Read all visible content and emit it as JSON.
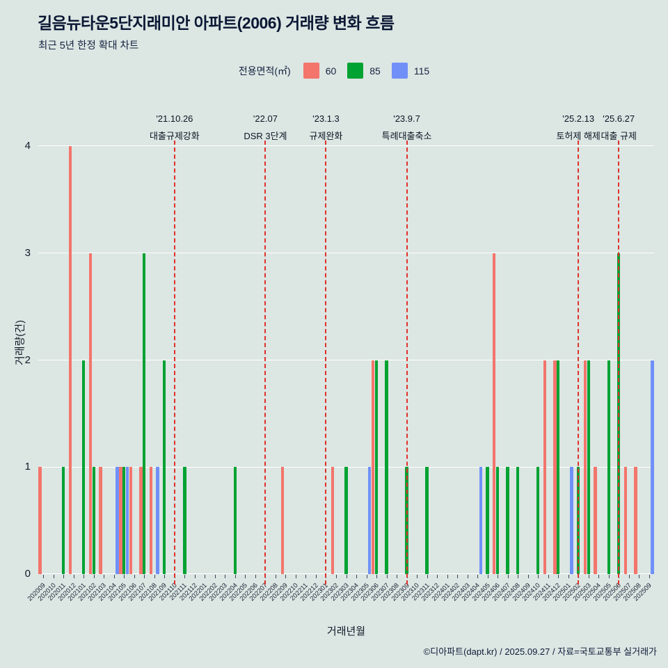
{
  "header": {
    "title": "길음뉴타운5단지래미안 아파트(2006) 거래량 변화 흐름",
    "subtitle": "최근 5년 한정 확대 차트"
  },
  "legend": {
    "title": "전용면적(㎡)",
    "items": [
      {
        "label": "60",
        "color": "#f3756c"
      },
      {
        "label": "85",
        "color": "#00a232"
      },
      {
        "label": "115",
        "color": "#7090f8"
      }
    ]
  },
  "axes": {
    "x_title": "거래년월",
    "y_title": "거래량(건)",
    "y_ticks": [
      0,
      1,
      2,
      3,
      4
    ]
  },
  "footer": {
    "credit": "©디아파트(dapt.kr) / 2025.09.27 / 자료=국토교통부 실거래가"
  },
  "chart_data": {
    "type": "bar",
    "title": "길음뉴타운5단지래미안 아파트(2006) 거래량 변화 흐름",
    "xlabel": "거래년월",
    "ylabel": "거래량(건)",
    "ylim": [
      0,
      4
    ],
    "grid": true,
    "legend_position": "top",
    "annotation_color": "#e0302a",
    "categories": [
      "202009",
      "202010",
      "202011",
      "202012",
      "202101",
      "202102",
      "202103",
      "202104",
      "202105",
      "202106",
      "202107",
      "202108",
      "202109",
      "202110",
      "202111",
      "202112",
      "202201",
      "202202",
      "202203",
      "202204",
      "202205",
      "202206",
      "202207",
      "202208",
      "202209",
      "202210",
      "202211",
      "202212",
      "202301",
      "202302",
      "202303",
      "202304",
      "202305",
      "202306",
      "202307",
      "202308",
      "202309",
      "202310",
      "202311",
      "202312",
      "202401",
      "202402",
      "202403",
      "202404",
      "202405",
      "202406",
      "202407",
      "202408",
      "202409",
      "202410",
      "202411",
      "202412",
      "202501",
      "202502",
      "202503",
      "202504",
      "202505",
      "202506",
      "202507",
      "202508",
      "202509"
    ],
    "series": [
      {
        "name": "60",
        "color": "#f3756c",
        "values": [
          1,
          0,
          0,
          4,
          0,
          3,
          1,
          0,
          1,
          1,
          1,
          1,
          0,
          0,
          0,
          0,
          0,
          0,
          0,
          0,
          0,
          0,
          0,
          0,
          1,
          0,
          0,
          0,
          0,
          1,
          0,
          0,
          0,
          2,
          0,
          0,
          0,
          0,
          0,
          0,
          0,
          0,
          0,
          0,
          0,
          3,
          0,
          0,
          0,
          0,
          2,
          2,
          0,
          0,
          2,
          1,
          0,
          0,
          1,
          1,
          0
        ]
      },
      {
        "name": "85",
        "color": "#00a232",
        "values": [
          0,
          0,
          1,
          0,
          2,
          1,
          0,
          0,
          1,
          0,
          3,
          0,
          2,
          0,
          1,
          0,
          0,
          0,
          0,
          1,
          0,
          0,
          0,
          0,
          0,
          0,
          0,
          0,
          0,
          0,
          1,
          0,
          0,
          2,
          2,
          0,
          1,
          0,
          1,
          0,
          0,
          0,
          0,
          0,
          1,
          1,
          1,
          1,
          0,
          1,
          0,
          2,
          0,
          1,
          2,
          0,
          2,
          3,
          0,
          0,
          0
        ]
      },
      {
        "name": "115",
        "color": "#7090f8",
        "values": [
          0,
          0,
          0,
          0,
          0,
          0,
          0,
          1,
          1,
          0,
          0,
          1,
          0,
          0,
          0,
          0,
          0,
          0,
          0,
          0,
          0,
          0,
          0,
          0,
          0,
          0,
          0,
          0,
          0,
          0,
          0,
          0,
          1,
          0,
          0,
          0,
          0,
          0,
          0,
          0,
          0,
          0,
          0,
          1,
          0,
          0,
          0,
          0,
          0,
          0,
          0,
          0,
          1,
          0,
          0,
          0,
          0,
          0,
          0,
          0,
          2
        ]
      }
    ],
    "annotations": [
      {
        "month": "202110",
        "date": "'21.10.26",
        "label": "대출규제강화"
      },
      {
        "month": "202207",
        "date": "'22.07",
        "label": "DSR 3단계"
      },
      {
        "month": "202301",
        "date": "'23.1.3",
        "label": "규제완화"
      },
      {
        "month": "202309",
        "date": "'23.9.7",
        "label": "특례대출축소"
      },
      {
        "month": "202502",
        "date": "'25.2.13",
        "label": "토허제 해제"
      },
      {
        "month": "202506",
        "date": "'25.6.27",
        "label": "대출 규제"
      }
    ]
  }
}
